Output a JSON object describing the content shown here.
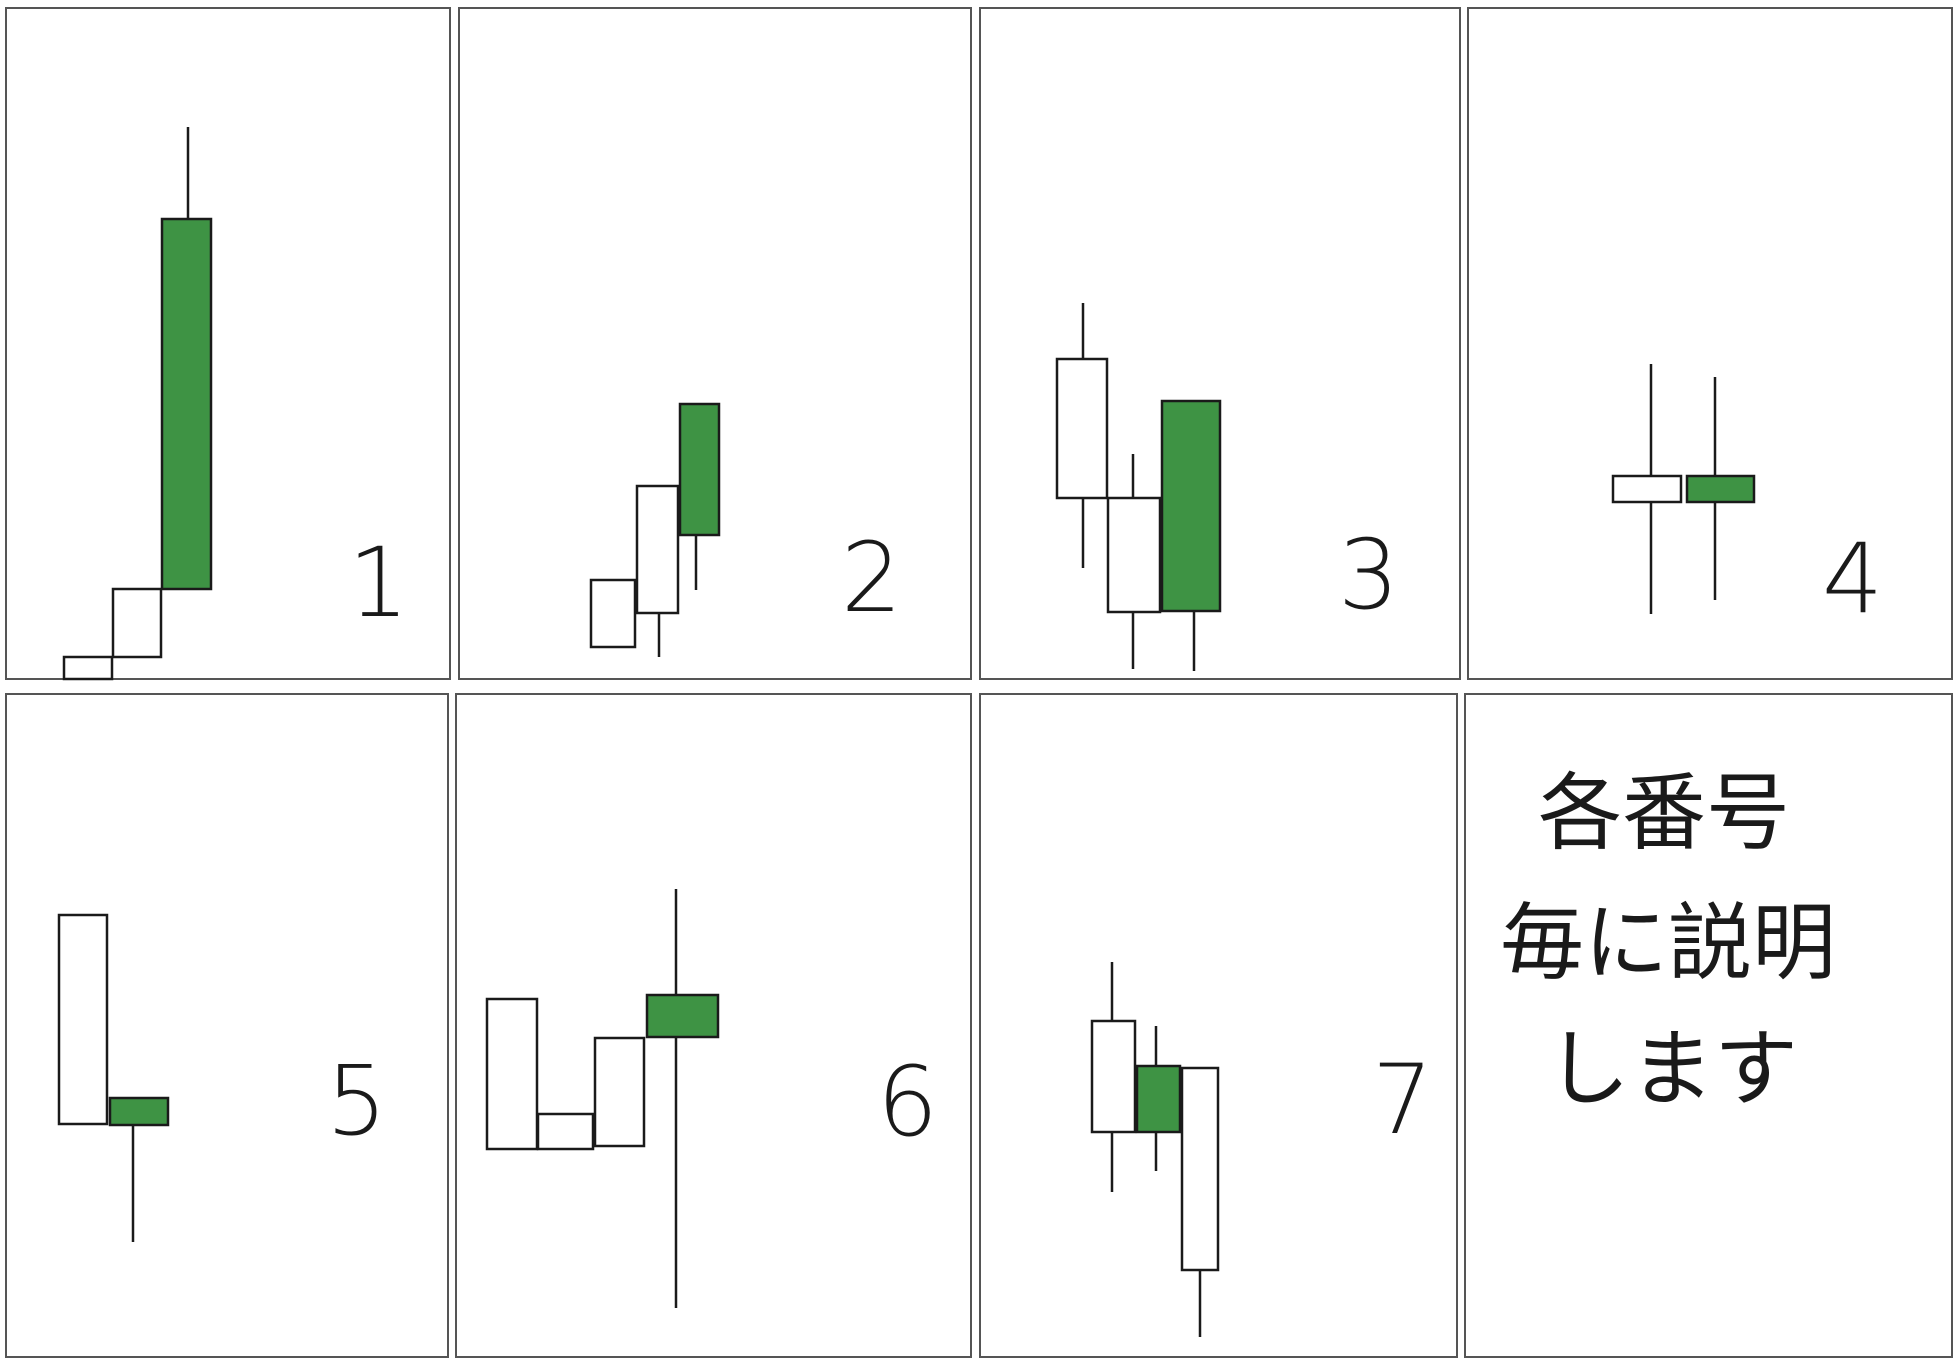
{
  "colors": {
    "bull_fill": "#3e9344",
    "bear_fill": "#ffffff",
    "outline": "#1a1a1a",
    "panel_border": "#555555",
    "background": "#ffffff"
  },
  "panels": [
    {
      "label": "1",
      "candles": [
        {
          "color": "bear",
          "open": 22,
          "close": 0,
          "high": 22,
          "low": 0
        },
        {
          "color": "bear",
          "open": 90,
          "close": 22,
          "high": 90,
          "low": 22
        },
        {
          "color": "bull",
          "open": 90,
          "close": 460,
          "high": 552,
          "low": 90
        }
      ]
    },
    {
      "label": "2",
      "candles": [
        {
          "color": "bear",
          "open": 99,
          "close": 32,
          "high": 99,
          "low": 32
        },
        {
          "color": "bear",
          "open": 193,
          "close": 66,
          "high": 193,
          "low": 22
        },
        {
          "color": "bull",
          "open": 144,
          "close": 275,
          "high": 275,
          "low": 89
        }
      ]
    },
    {
      "label": "3",
      "candles": [
        {
          "color": "bear",
          "open": 320,
          "close": 181,
          "high": 376,
          "low": 111
        },
        {
          "color": "bear",
          "open": 181,
          "close": 67,
          "high": 225,
          "low": 10
        },
        {
          "color": "bull",
          "open": 68,
          "close": 278,
          "high": 278,
          "low": 8
        }
      ]
    },
    {
      "label": "4",
      "candles": [
        {
          "color": "bear",
          "open": 203,
          "close": 177,
          "high": 315,
          "low": 65
        },
        {
          "color": "bull",
          "open": 177,
          "close": 203,
          "high": 302,
          "low": 79
        }
      ]
    },
    {
      "label": "5",
      "candles": [
        {
          "color": "bear",
          "open": 442,
          "close": 233,
          "high": 442,
          "low": 233
        },
        {
          "color": "bull",
          "open": 232,
          "close": 259,
          "high": 259,
          "low": 115
        }
      ]
    },
    {
      "label": "6",
      "candles": [
        {
          "color": "bear",
          "open": 358,
          "close": 208,
          "high": 358,
          "low": 208
        },
        {
          "color": "bear",
          "open": 243,
          "close": 208,
          "high": 243,
          "low": 208
        },
        {
          "color": "bear",
          "open": 319,
          "close": 211,
          "high": 319,
          "low": 211
        },
        {
          "color": "bull",
          "open": 320,
          "close": 362,
          "high": 468,
          "low": 49
        }
      ]
    },
    {
      "label": "7",
      "candles": [
        {
          "color": "bear",
          "open": 336,
          "close": 225,
          "high": 395,
          "low": 165
        },
        {
          "color": "bull",
          "open": 225,
          "close": 291,
          "high": 331,
          "low": 186
        },
        {
          "color": "bear",
          "open": 289,
          "close": 87,
          "high": 289,
          "low": 20
        }
      ]
    }
  ],
  "note": {
    "lines": [
      "各番号",
      "毎に説明",
      "します"
    ]
  }
}
